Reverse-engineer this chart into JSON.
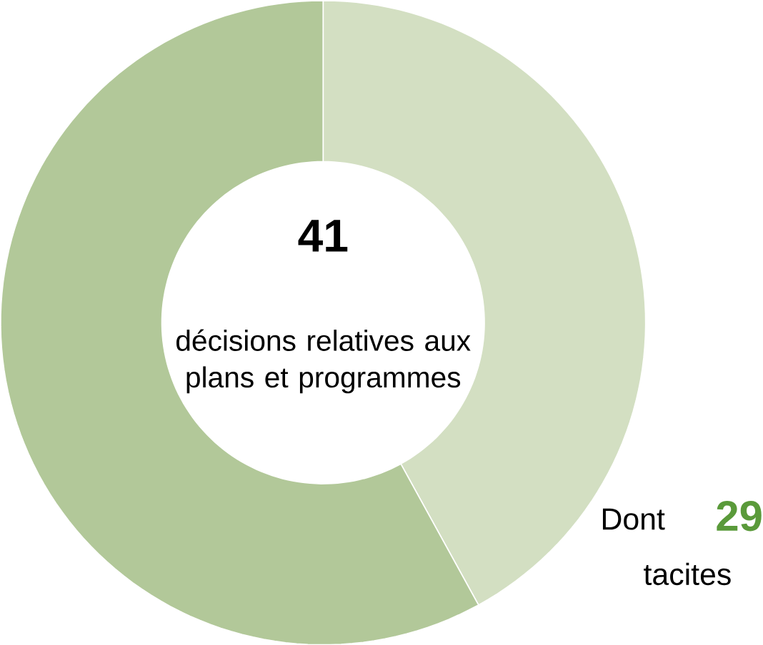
{
  "chart_data": {
    "type": "donut",
    "categories": [
      null,
      null
    ],
    "values": [
      42,
      58
    ],
    "colors": [
      "#d3dfc2",
      "#b2c899"
    ],
    "annotations": [
      "41",
      "décisions relatives aux plans et programmes",
      "Dont",
      "29",
      "tacites"
    ]
  }
}
